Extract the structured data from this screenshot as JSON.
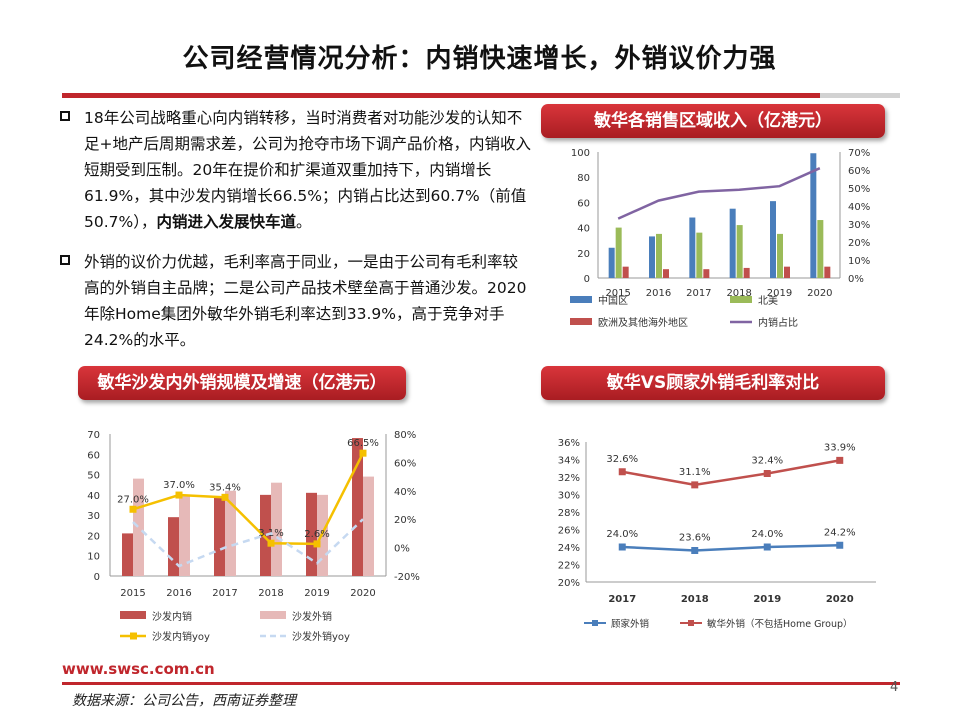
{
  "header": {
    "title": "公司经营情况分析：内销快速增长，外销议价力强"
  },
  "bullets": [
    {
      "text": "18年公司战略重心向内销转移，当时消费者对功能沙发的认知不足+地产后周期需求差，公司为抢夺市场下调产品价格，内销收入短期受到压制。20年在提价和扩渠道双重加持下，内销增长61.9%，其中沙发内销增长66.5%；内销占比达到60.7%（前值50.7%），",
      "bold": "内销进入发展快车道"
    },
    {
      "text": "外销的议价力优越，毛利率高于同业，一是由于公司有毛利率较高的外销自主品牌；二是公司产品技术壁垒高于普通沙发。2020年除Home集团外敏华外销毛利率达到33.9%，高于竞争对手24.2%的水平。"
    }
  ],
  "charts": {
    "region_revenue": {
      "banner": "敏华各销售区域收入（亿港元）",
      "chart_data": {
        "type": "bar",
        "categories": [
          "2015",
          "2016",
          "2017",
          "2018",
          "2019",
          "2020"
        ],
        "series": [
          {
            "name": "中国区",
            "values": [
              24,
              33,
              48,
              55,
              61,
              99
            ],
            "color": "#4a7ebb"
          },
          {
            "name": "北美",
            "values": [
              40,
              35,
              36,
              42,
              35,
              46
            ],
            "color": "#9bbb59"
          },
          {
            "name": "欧洲及其他海外地区",
            "values": [
              9,
              7,
              7,
              8,
              9,
              9
            ],
            "color": "#c0504d"
          },
          {
            "name": "内销占比",
            "type": "line",
            "axis": "right",
            "values": [
              33,
              43,
              48,
              49,
              51,
              61
            ],
            "color": "#8064a2"
          }
        ],
        "ylim": [
          0,
          100
        ],
        "yticks": [
          "0",
          "20",
          "40",
          "60",
          "80",
          "100"
        ],
        "y2lim": [
          0,
          70
        ],
        "y2ticks": [
          "0%",
          "10%",
          "20%",
          "30%",
          "40%",
          "50%",
          "60%",
          "70%"
        ],
        "legend": "bottom"
      }
    },
    "sofa_scale": {
      "banner": "敏华沙发内外销规模及增速（亿港元）",
      "chart_data": {
        "type": "bar",
        "categories": [
          "2015",
          "2016",
          "2017",
          "2018",
          "2019",
          "2020"
        ],
        "series": [
          {
            "name": "沙发内销",
            "values": [
              21,
              29,
              39,
              40,
              41,
              68
            ],
            "color": "#c0504d"
          },
          {
            "name": "沙发外销",
            "values": [
              48,
              40,
              42,
              46,
              40,
              49
            ],
            "color": "#e6b9b8"
          },
          {
            "name": "沙发内销yoy",
            "type": "line",
            "axis": "right",
            "values": [
              27.0,
              37.0,
              35.4,
              3.1,
              2.6,
              66.5
            ],
            "labels": [
              "27.0%",
              "37.0%",
              "35.4%",
              "3.1%",
              "2.6%",
              "66.5%"
            ],
            "color": "#f5c000"
          },
          {
            "name": "沙发外销yoy",
            "type": "line",
            "dash": true,
            "axis": "right",
            "values": [
              18,
              -13,
              0,
              10,
              -11,
              20
            ],
            "color": "#c6d9f1"
          }
        ],
        "ylim": [
          0,
          70
        ],
        "yticks": [
          "0",
          "10",
          "20",
          "30",
          "40",
          "50",
          "60",
          "70"
        ],
        "y2lim": [
          -20,
          80
        ],
        "y2ticks": [
          "-20%",
          "0%",
          "20%",
          "40%",
          "60%",
          "80%"
        ],
        "legend": "bottom"
      }
    },
    "gross_margin": {
      "banner": "敏华VS顾家外销毛利率对比",
      "chart_data": {
        "type": "line",
        "categories": [
          "2017",
          "2018",
          "2019",
          "2020"
        ],
        "series": [
          {
            "name": "顾家外销",
            "values": [
              24.0,
              23.6,
              24.0,
              24.2
            ],
            "labels": [
              "24.0%",
              "23.6%",
              "24.0%",
              "24.2%"
            ],
            "color": "#4a7ebb"
          },
          {
            "name": "敏华外销（不包括Home Group）",
            "values": [
              32.6,
              31.1,
              32.4,
              33.9
            ],
            "labels": [
              "32.6%",
              "31.1%",
              "32.4%",
              "33.9%"
            ],
            "color": "#c0504d"
          }
        ],
        "ylim": [
          20,
          36
        ],
        "yticks": [
          "20%",
          "22%",
          "24%",
          "26%",
          "28%",
          "30%",
          "32%",
          "34%",
          "36%"
        ],
        "legend": "bottom"
      }
    }
  },
  "footer": {
    "url": "www.swsc.com.cn",
    "source": "数据来源：公司公告，西南证券整理",
    "page_number": "4"
  }
}
